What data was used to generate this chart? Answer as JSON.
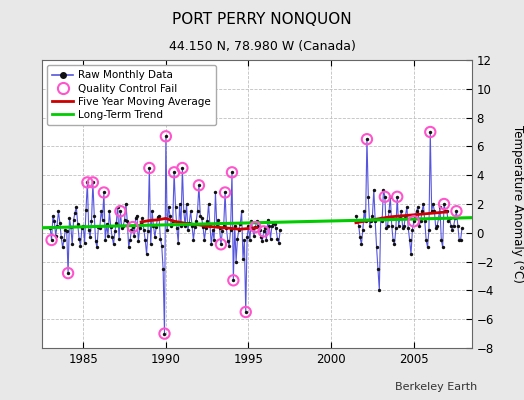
{
  "title": "PORT PERRY NONQUON",
  "subtitle": "44.150 N, 78.980 W (Canada)",
  "ylabel": "Temperature Anomaly (°C)",
  "credit": "Berkeley Earth",
  "ylim": [
    -8,
    12
  ],
  "xlim": [
    1982.5,
    2008.5
  ],
  "xticks": [
    1985,
    1990,
    1995,
    2000,
    2005
  ],
  "yticks": [
    -8,
    -6,
    -4,
    -2,
    0,
    2,
    4,
    6,
    8,
    10,
    12
  ],
  "fig_bg_color": "#e8e8e8",
  "plot_bg_color": "#ffffff",
  "raw_color": "#5555dd",
  "raw_dot_color": "#111111",
  "qc_fail_color": "#ff55cc",
  "moving_avg_color": "#cc0000",
  "trend_color": "#00cc00",
  "raw_data": [
    [
      1983.0,
      0.3
    ],
    [
      1983.083,
      -0.5
    ],
    [
      1983.167,
      1.2
    ],
    [
      1983.25,
      0.8
    ],
    [
      1983.333,
      -0.2
    ],
    [
      1983.417,
      0.5
    ],
    [
      1983.5,
      1.5
    ],
    [
      1983.583,
      0.7
    ],
    [
      1983.667,
      -0.3
    ],
    [
      1983.75,
      -1.0
    ],
    [
      1983.833,
      -0.5
    ],
    [
      1983.917,
      0.2
    ],
    [
      1984.0,
      0.1
    ],
    [
      1984.083,
      -2.8
    ],
    [
      1984.167,
      1.0
    ],
    [
      1984.25,
      0.4
    ],
    [
      1984.333,
      -0.8
    ],
    [
      1984.417,
      0.9
    ],
    [
      1984.5,
      1.4
    ],
    [
      1984.583,
      1.8
    ],
    [
      1984.667,
      0.6
    ],
    [
      1984.75,
      -0.4
    ],
    [
      1984.833,
      -0.9
    ],
    [
      1984.917,
      0.3
    ],
    [
      1985.0,
      0.5
    ],
    [
      1985.083,
      -0.7
    ],
    [
      1985.167,
      1.6
    ],
    [
      1985.25,
      3.5
    ],
    [
      1985.333,
      0.2
    ],
    [
      1985.417,
      -0.3
    ],
    [
      1985.5,
      0.8
    ],
    [
      1985.583,
      3.5
    ],
    [
      1985.667,
      1.2
    ],
    [
      1985.75,
      -0.6
    ],
    [
      1985.833,
      -1.0
    ],
    [
      1985.917,
      0.4
    ],
    [
      1986.0,
      0.3
    ],
    [
      1986.083,
      1.5
    ],
    [
      1986.167,
      0.9
    ],
    [
      1986.25,
      2.8
    ],
    [
      1986.333,
      -0.5
    ],
    [
      1986.417,
      0.6
    ],
    [
      1986.5,
      -0.2
    ],
    [
      1986.583,
      1.5
    ],
    [
      1986.667,
      0.4
    ],
    [
      1986.75,
      -0.3
    ],
    [
      1986.833,
      -0.8
    ],
    [
      1986.917,
      0.1
    ],
    [
      1987.0,
      0.7
    ],
    [
      1987.083,
      1.8
    ],
    [
      1987.167,
      -0.4
    ],
    [
      1987.25,
      1.5
    ],
    [
      1987.333,
      0.3
    ],
    [
      1987.417,
      0.5
    ],
    [
      1987.5,
      0.9
    ],
    [
      1987.583,
      2.0
    ],
    [
      1987.667,
      0.8
    ],
    [
      1987.75,
      -1.0
    ],
    [
      1987.833,
      -0.5
    ],
    [
      1987.917,
      0.2
    ],
    [
      1988.0,
      0.4
    ],
    [
      1988.083,
      -0.2
    ],
    [
      1988.167,
      1.0
    ],
    [
      1988.25,
      1.2
    ],
    [
      1988.333,
      -0.6
    ],
    [
      1988.417,
      0.3
    ],
    [
      1988.5,
      0.7
    ],
    [
      1988.583,
      1.0
    ],
    [
      1988.667,
      0.2
    ],
    [
      1988.75,
      -0.5
    ],
    [
      1988.833,
      -1.5
    ],
    [
      1988.917,
      0.1
    ],
    [
      1989.0,
      4.5
    ],
    [
      1989.083,
      -0.8
    ],
    [
      1989.167,
      1.5
    ],
    [
      1989.25,
      0.5
    ],
    [
      1989.333,
      -0.3
    ],
    [
      1989.417,
      0.4
    ],
    [
      1989.5,
      1.1
    ],
    [
      1989.583,
      1.2
    ],
    [
      1989.667,
      -0.4
    ],
    [
      1989.75,
      -0.9
    ],
    [
      1989.833,
      -2.5
    ],
    [
      1989.917,
      -7.0
    ],
    [
      1990.0,
      6.7
    ],
    [
      1990.083,
      0.2
    ],
    [
      1990.167,
      1.8
    ],
    [
      1990.25,
      1.2
    ],
    [
      1990.333,
      0.5
    ],
    [
      1990.417,
      0.8
    ],
    [
      1990.5,
      4.2
    ],
    [
      1990.583,
      1.8
    ],
    [
      1990.667,
      0.3
    ],
    [
      1990.75,
      -0.7
    ],
    [
      1990.833,
      2.0
    ],
    [
      1990.917,
      0.5
    ],
    [
      1991.0,
      4.5
    ],
    [
      1991.083,
      1.5
    ],
    [
      1991.167,
      0.5
    ],
    [
      1991.25,
      2.0
    ],
    [
      1991.333,
      0.2
    ],
    [
      1991.417,
      0.7
    ],
    [
      1991.5,
      1.5
    ],
    [
      1991.583,
      0.5
    ],
    [
      1991.667,
      -0.5
    ],
    [
      1991.75,
      0.4
    ],
    [
      1991.833,
      0.8
    ],
    [
      1991.917,
      1.5
    ],
    [
      1992.0,
      3.3
    ],
    [
      1992.083,
      1.2
    ],
    [
      1992.167,
      1.0
    ],
    [
      1992.25,
      0.4
    ],
    [
      1992.333,
      -0.5
    ],
    [
      1992.417,
      0.3
    ],
    [
      1992.5,
      0.8
    ],
    [
      1992.583,
      2.0
    ],
    [
      1992.667,
      0.5
    ],
    [
      1992.75,
      -0.8
    ],
    [
      1992.833,
      0.2
    ],
    [
      1992.917,
      -0.5
    ],
    [
      1993.0,
      2.8
    ],
    [
      1993.083,
      0.5
    ],
    [
      1993.167,
      0.9
    ],
    [
      1993.25,
      0.3
    ],
    [
      1993.333,
      -0.8
    ],
    [
      1993.417,
      0.1
    ],
    [
      1993.5,
      0.5
    ],
    [
      1993.583,
      2.8
    ],
    [
      1993.667,
      0.3
    ],
    [
      1993.75,
      -0.6
    ],
    [
      1993.833,
      -0.9
    ],
    [
      1993.917,
      0.2
    ],
    [
      1994.0,
      4.2
    ],
    [
      1994.083,
      -3.3
    ],
    [
      1994.167,
      0.5
    ],
    [
      1994.25,
      -2.0
    ],
    [
      1994.333,
      -0.4
    ],
    [
      1994.417,
      0.2
    ],
    [
      1994.5,
      0.6
    ],
    [
      1994.583,
      1.5
    ],
    [
      1994.667,
      -1.8
    ],
    [
      1994.75,
      -0.5
    ],
    [
      1994.833,
      -5.5
    ],
    [
      1994.917,
      -0.3
    ],
    [
      1995.0,
      0.5
    ],
    [
      1995.083,
      -0.5
    ],
    [
      1995.167,
      0.8
    ],
    [
      1995.25,
      0.3
    ],
    [
      1995.333,
      -0.2
    ],
    [
      1995.417,
      0.4
    ],
    [
      1995.5,
      0.8
    ],
    [
      1995.583,
      0.5
    ],
    [
      1995.667,
      0.2
    ],
    [
      1995.75,
      -0.3
    ],
    [
      1995.833,
      -0.6
    ],
    [
      1995.917,
      0.1
    ],
    [
      1996.0,
      0.3
    ],
    [
      1996.083,
      -0.5
    ],
    [
      1996.167,
      0.9
    ],
    [
      1996.25,
      0.5
    ],
    [
      1996.333,
      -0.4
    ],
    [
      1996.417,
      0.5
    ],
    [
      1996.5,
      0.7
    ],
    [
      1996.583,
      0.6
    ],
    [
      1996.667,
      0.3
    ],
    [
      1996.75,
      -0.4
    ],
    [
      1996.833,
      -0.7
    ],
    [
      1996.917,
      0.2
    ],
    [
      2001.5,
      1.2
    ],
    [
      2001.667,
      0.5
    ],
    [
      2001.75,
      -0.3
    ],
    [
      2001.833,
      -0.8
    ],
    [
      2001.917,
      0.2
    ],
    [
      2002.0,
      1.5
    ],
    [
      2002.083,
      0.8
    ],
    [
      2002.167,
      6.5
    ],
    [
      2002.25,
      2.5
    ],
    [
      2002.333,
      0.5
    ],
    [
      2002.417,
      0.8
    ],
    [
      2002.5,
      1.2
    ],
    [
      2002.583,
      3.0
    ],
    [
      2002.667,
      0.8
    ],
    [
      2002.75,
      -1.0
    ],
    [
      2002.833,
      -2.5
    ],
    [
      2002.917,
      -4.0
    ],
    [
      2003.0,
      1.0
    ],
    [
      2003.083,
      0.8
    ],
    [
      2003.167,
      3.0
    ],
    [
      2003.25,
      2.5
    ],
    [
      2003.333,
      0.3
    ],
    [
      2003.417,
      0.5
    ],
    [
      2003.5,
      1.5
    ],
    [
      2003.583,
      2.5
    ],
    [
      2003.667,
      0.5
    ],
    [
      2003.75,
      -0.5
    ],
    [
      2003.833,
      -0.8
    ],
    [
      2003.917,
      0.3
    ],
    [
      2004.0,
      2.5
    ],
    [
      2004.083,
      0.5
    ],
    [
      2004.167,
      1.0
    ],
    [
      2004.25,
      1.5
    ],
    [
      2004.333,
      0.3
    ],
    [
      2004.417,
      0.5
    ],
    [
      2004.5,
      1.2
    ],
    [
      2004.583,
      1.8
    ],
    [
      2004.667,
      0.3
    ],
    [
      2004.75,
      -0.5
    ],
    [
      2004.833,
      -1.5
    ],
    [
      2004.917,
      0.2
    ],
    [
      2005.0,
      0.8
    ],
    [
      2005.083,
      1.2
    ],
    [
      2005.167,
      1.5
    ],
    [
      2005.25,
      1.8
    ],
    [
      2005.333,
      0.5
    ],
    [
      2005.417,
      0.8
    ],
    [
      2005.5,
      1.5
    ],
    [
      2005.583,
      2.0
    ],
    [
      2005.667,
      0.8
    ],
    [
      2005.75,
      -0.5
    ],
    [
      2005.833,
      -1.0
    ],
    [
      2005.917,
      0.2
    ],
    [
      2006.0,
      7.0
    ],
    [
      2006.083,
      1.5
    ],
    [
      2006.167,
      2.0
    ],
    [
      2006.25,
      1.5
    ],
    [
      2006.333,
      0.3
    ],
    [
      2006.417,
      0.5
    ],
    [
      2006.5,
      1.0
    ],
    [
      2006.583,
      1.8
    ],
    [
      2006.667,
      -0.5
    ],
    [
      2006.75,
      -1.0
    ],
    [
      2006.833,
      2.0
    ],
    [
      2006.917,
      1.5
    ],
    [
      2007.0,
      1.5
    ],
    [
      2007.083,
      0.8
    ],
    [
      2007.167,
      1.0
    ],
    [
      2007.25,
      0.5
    ],
    [
      2007.333,
      0.2
    ],
    [
      2007.417,
      0.5
    ],
    [
      2007.5,
      1.0
    ],
    [
      2007.583,
      1.5
    ],
    [
      2007.667,
      0.5
    ],
    [
      2007.75,
      -0.5
    ],
    [
      2007.833,
      -0.5
    ],
    [
      2007.917,
      0.3
    ]
  ],
  "qc_fail_points": [
    [
      1983.083,
      -0.5
    ],
    [
      1984.083,
      -2.8
    ],
    [
      1985.25,
      3.5
    ],
    [
      1985.583,
      3.5
    ],
    [
      1986.25,
      2.8
    ],
    [
      1987.25,
      1.5
    ],
    [
      1988.0,
      0.4
    ],
    [
      1989.0,
      4.5
    ],
    [
      1989.917,
      -7.0
    ],
    [
      1990.0,
      6.7
    ],
    [
      1990.5,
      4.2
    ],
    [
      1991.0,
      4.5
    ],
    [
      1992.0,
      3.3
    ],
    [
      1993.583,
      2.8
    ],
    [
      1994.0,
      4.2
    ],
    [
      1994.083,
      -3.3
    ],
    [
      1994.833,
      -5.5
    ],
    [
      1993.333,
      -0.8
    ],
    [
      1995.417,
      0.4
    ],
    [
      1995.917,
      0.1
    ],
    [
      2002.167,
      6.5
    ],
    [
      2003.25,
      2.5
    ],
    [
      2004.0,
      2.5
    ],
    [
      2005.0,
      0.8
    ],
    [
      2006.0,
      7.0
    ],
    [
      2006.833,
      2.0
    ],
    [
      2007.583,
      1.5
    ]
  ],
  "moving_avg_seg1": [
    [
      1988.5,
      0.75
    ],
    [
      1989.0,
      0.85
    ],
    [
      1989.5,
      0.9
    ],
    [
      1990.0,
      1.0
    ],
    [
      1990.5,
      0.8
    ],
    [
      1991.0,
      0.7
    ],
    [
      1991.5,
      0.6
    ],
    [
      1992.0,
      0.55
    ],
    [
      1992.5,
      0.45
    ],
    [
      1993.0,
      0.4
    ],
    [
      1993.5,
      0.35
    ],
    [
      1994.0,
      0.3
    ],
    [
      1994.5,
      0.25
    ],
    [
      1995.0,
      0.3
    ],
    [
      1995.5,
      0.35
    ]
  ],
  "moving_avg_seg2": [
    [
      2001.5,
      0.7
    ],
    [
      2002.0,
      0.8
    ],
    [
      2002.5,
      0.9
    ],
    [
      2003.0,
      1.0
    ],
    [
      2003.5,
      1.1
    ],
    [
      2004.0,
      1.15
    ],
    [
      2004.5,
      1.2
    ],
    [
      2005.0,
      1.25
    ],
    [
      2005.5,
      1.3
    ],
    [
      2006.0,
      1.35
    ],
    [
      2006.5,
      1.4
    ],
    [
      2007.0,
      1.45
    ]
  ],
  "trend_x": [
    1982.5,
    2008.5
  ],
  "trend_y": [
    0.35,
    1.05
  ]
}
